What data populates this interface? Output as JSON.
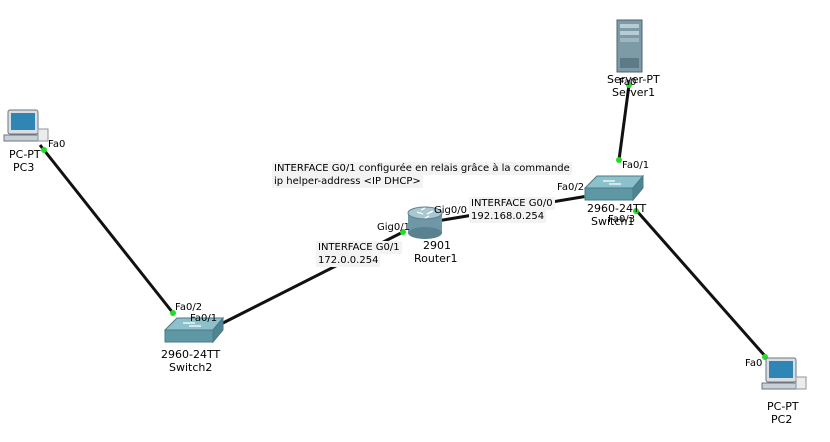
{
  "devices": {
    "pc3": {
      "type": "PC-PT",
      "name": "PC3"
    },
    "pc2": {
      "type": "PC-PT",
      "name": "PC2"
    },
    "server1": {
      "type": "Server-PT",
      "name": "Server1"
    },
    "switch2": {
      "model": "2960-24TT",
      "name": "Switch2"
    },
    "switch1": {
      "model": "2960-24TT",
      "name": "Switch1"
    },
    "router1": {
      "model": "2901",
      "name": "Router1"
    }
  },
  "ports": {
    "pc3_fa0": "Fa0",
    "sw2_fa02": "Fa0/2",
    "sw2_fa01": "Fa0/1",
    "r1_gig01": "Gig0/1",
    "r1_gig00": "Gig0/0",
    "sw1_fa02": "Fa0/2",
    "sw1_fa01": "Fa0/1",
    "sw1_fa03": "Fa0/3",
    "srv_fa0": "Fa0",
    "pc2_fa0": "Fa0"
  },
  "annotations": {
    "relay_line1": "INTERFACE G0/1 configurée en relais grâce à la commande",
    "relay_line2": "ip helper-address <IP DHCP>",
    "g00_title": "INTERFACE G0/0",
    "g00_ip": "192.168.0.254",
    "g01_title": "INTERFACE G0/1",
    "g01_ip": "172.0.0.254"
  },
  "colors": {
    "link": "#111111",
    "port_up": "#22dd22",
    "switch_body": "#6fa9b5",
    "router_body": "#7fa8b6",
    "server_body": "#7d9aa7",
    "pc_screen": "#2f86b5"
  }
}
